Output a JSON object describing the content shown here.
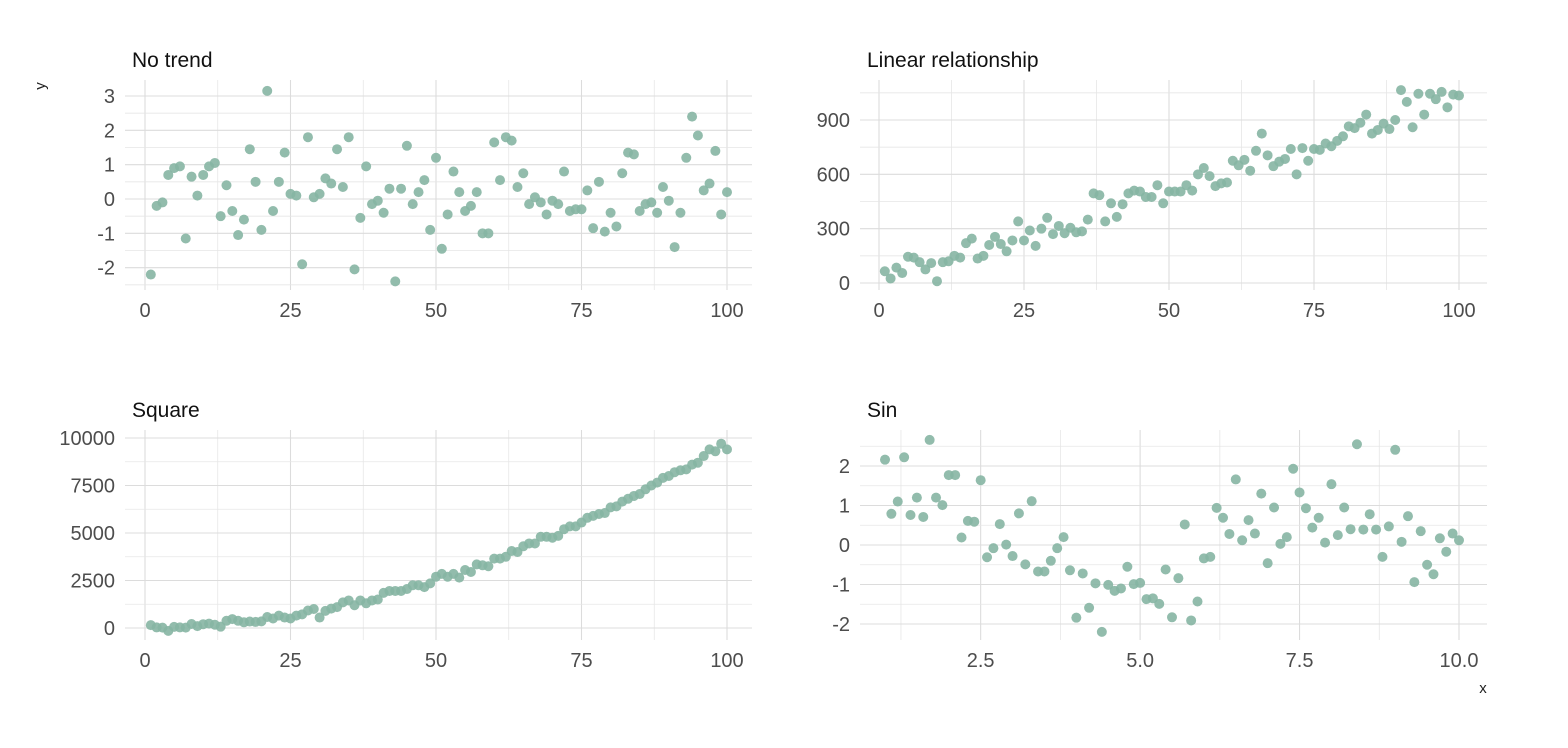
{
  "chart_data": [
    {
      "type": "scatter",
      "title": "No trend",
      "point_color": "#86b5a3",
      "grid": true,
      "xlim": [
        0,
        100
      ],
      "ylim": [
        -2.5,
        3.5
      ],
      "x_ticks": [
        0,
        25,
        50,
        75,
        100
      ],
      "x_tick_labels": [
        "0",
        "25",
        "50",
        "75",
        "100"
      ],
      "y_ticks": [
        -2,
        -1,
        0,
        1,
        2,
        3
      ],
      "y_tick_labels": [
        "-2",
        "-1",
        "0",
        "1",
        "2",
        "3"
      ],
      "x_start": 1,
      "x_step": 1,
      "y": [
        -2.2,
        -0.2,
        -0.1,
        0.7,
        0.9,
        0.95,
        -1.15,
        0.65,
        0.1,
        0.7,
        0.95,
        1.05,
        -0.5,
        0.4,
        -0.35,
        -1.05,
        -0.6,
        1.45,
        0.5,
        -0.9,
        3.15,
        -0.35,
        0.5,
        1.35,
        0.15,
        0.1,
        -1.9,
        1.8,
        0.05,
        0.15,
        0.6,
        0.45,
        1.45,
        0.35,
        1.8,
        -2.05,
        -0.55,
        0.95,
        -0.15,
        -0.05,
        -0.4,
        0.3,
        -2.4,
        0.3,
        1.55,
        -0.15,
        0.2,
        0.55,
        -0.9,
        1.2,
        -1.45,
        -0.45,
        0.8,
        0.2,
        -0.35,
        -0.2,
        0.2,
        -1.0,
        -1.0,
        1.65,
        0.55,
        1.8,
        1.7,
        0.35,
        0.75,
        -0.15,
        0.05,
        -0.1,
        -0.45,
        -0.05,
        -0.15,
        0.8,
        -0.35,
        -0.3,
        -0.3,
        0.25,
        -0.85,
        0.5,
        -0.95,
        -0.4,
        -0.8,
        0.75,
        1.35,
        1.3,
        -0.35,
        -0.15,
        -0.1,
        -0.4,
        0.35,
        -0.05,
        -1.4,
        -0.4,
        1.2,
        2.4,
        1.85,
        0.25,
        0.45,
        1.4,
        -0.45,
        0.2
      ]
    },
    {
      "type": "scatter",
      "title": "Linear relationship",
      "point_color": "#86b5a3",
      "grid": true,
      "xlim": [
        0,
        100
      ],
      "ylim": [
        -50,
        1100
      ],
      "x_ticks": [
        0,
        25,
        50,
        75,
        100
      ],
      "x_tick_labels": [
        "0",
        "25",
        "50",
        "75",
        "100"
      ],
      "y_ticks": [
        0,
        300,
        600,
        900
      ],
      "y_tick_labels": [
        "0",
        "300",
        "600",
        "900"
      ],
      "x_start": 1,
      "x_step": 1,
      "y": [
        65,
        25,
        85,
        55,
        145,
        140,
        115,
        75,
        110,
        10,
        115,
        120,
        150,
        140,
        220,
        245,
        135,
        150,
        210,
        255,
        215,
        175,
        235,
        340,
        235,
        290,
        205,
        300,
        360,
        270,
        315,
        275,
        305,
        280,
        285,
        350,
        495,
        485,
        340,
        440,
        365,
        435,
        495,
        510,
        505,
        475,
        475,
        540,
        440,
        505,
        505,
        505,
        540,
        510,
        600,
        635,
        590,
        535,
        550,
        555,
        675,
        650,
        680,
        620,
        730,
        825,
        705,
        645,
        670,
        685,
        740,
        600,
        745,
        675,
        740,
        735,
        770,
        755,
        785,
        810,
        865,
        855,
        885,
        930,
        825,
        845,
        880,
        850,
        900,
        1065,
        1000,
        860,
        1045,
        930,
        1045,
        1015,
        1055,
        970,
        1040,
        1035
      ]
    },
    {
      "type": "scatter",
      "title": "Square",
      "point_color": "#86b5a3",
      "grid": true,
      "xlim": [
        0,
        100
      ],
      "ylim": [
        -600,
        10500
      ],
      "x_ticks": [
        0,
        25,
        50,
        75,
        100
      ],
      "x_tick_labels": [
        "0",
        "25",
        "50",
        "75",
        "100"
      ],
      "y_ticks": [
        0,
        2500,
        5000,
        7500,
        10000
      ],
      "y_tick_labels": [
        "0",
        "2500",
        "5000",
        "7500",
        "10000"
      ],
      "x_start": 1,
      "x_step": 1,
      "y": [
        150,
        30,
        20,
        -150,
        60,
        30,
        20,
        210,
        100,
        200,
        230,
        170,
        70,
        380,
        470,
        380,
        300,
        340,
        320,
        350,
        580,
        500,
        650,
        550,
        500,
        650,
        720,
        920,
        1000,
        550,
        900,
        1020,
        1100,
        1350,
        1450,
        1200,
        1450,
        1300,
        1450,
        1500,
        1850,
        1950,
        1950,
        1950,
        2050,
        2250,
        2250,
        2150,
        2350,
        2700,
        2850,
        2700,
        2850,
        2650,
        3050,
        2950,
        3350,
        3300,
        3250,
        3650,
        3650,
        3750,
        4050,
        4000,
        4300,
        4450,
        4450,
        4800,
        4800,
        4750,
        4850,
        5200,
        5350,
        5350,
        5550,
        5800,
        5900,
        6000,
        6050,
        6350,
        6400,
        6650,
        6800,
        6950,
        7050,
        7300,
        7500,
        7650,
        7900,
        8000,
        8200,
        8300,
        8350,
        8600,
        8700,
        9050,
        9400,
        9300,
        9700,
        9400
      ]
    },
    {
      "type": "scatter",
      "title": "Sin",
      "xlabel": "x",
      "ylabel": "y",
      "point_color": "#86b5a3",
      "grid": true,
      "xlim": [
        0.6,
        10.4
      ],
      "ylim": [
        -2.5,
        2.9
      ],
      "x_ticks": [
        2.5,
        5.0,
        7.5,
        10.0
      ],
      "x_tick_labels": [
        "2.5",
        "5.0",
        "7.5",
        "10.0"
      ],
      "y_ticks": [
        -2,
        -1,
        0,
        1,
        2
      ],
      "y_tick_labels": [
        "-2",
        "-1",
        "0",
        "1",
        "2"
      ],
      "x_start": 1,
      "x_step": 0.1,
      "y": [
        2.16,
        0.79,
        1.1,
        2.22,
        0.76,
        1.2,
        0.71,
        2.66,
        1.2,
        1.01,
        1.77,
        1.77,
        0.19,
        0.61,
        0.59,
        1.64,
        -0.31,
        -0.08,
        0.53,
        0.01,
        -0.28,
        0.8,
        -0.49,
        1.11,
        -0.67,
        -0.67,
        -0.4,
        -0.08,
        0.2,
        -0.64,
        -1.84,
        -0.72,
        -1.59,
        -0.97,
        -2.2,
        -1.01,
        -1.16,
        -1.1,
        -0.55,
        -0.99,
        -0.96,
        -1.37,
        -1.35,
        -1.49,
        -0.62,
        -1.83,
        -0.84,
        0.52,
        -1.91,
        -1.43,
        -0.34,
        -0.3,
        0.94,
        0.69,
        0.28,
        1.66,
        0.12,
        0.63,
        0.29,
        1.3,
        -0.46,
        0.95,
        0.03,
        0.2,
        1.93,
        1.33,
        0.93,
        0.44,
        0.69,
        0.06,
        1.54,
        0.25,
        0.95,
        0.4,
        2.55,
        0.39,
        0.78,
        0.39,
        -0.3,
        0.47,
        2.41,
        0.08,
        0.73,
        -0.94,
        0.35,
        -0.5,
        -0.74,
        0.17,
        -0.17,
        0.29,
        0.12
      ]
    }
  ]
}
